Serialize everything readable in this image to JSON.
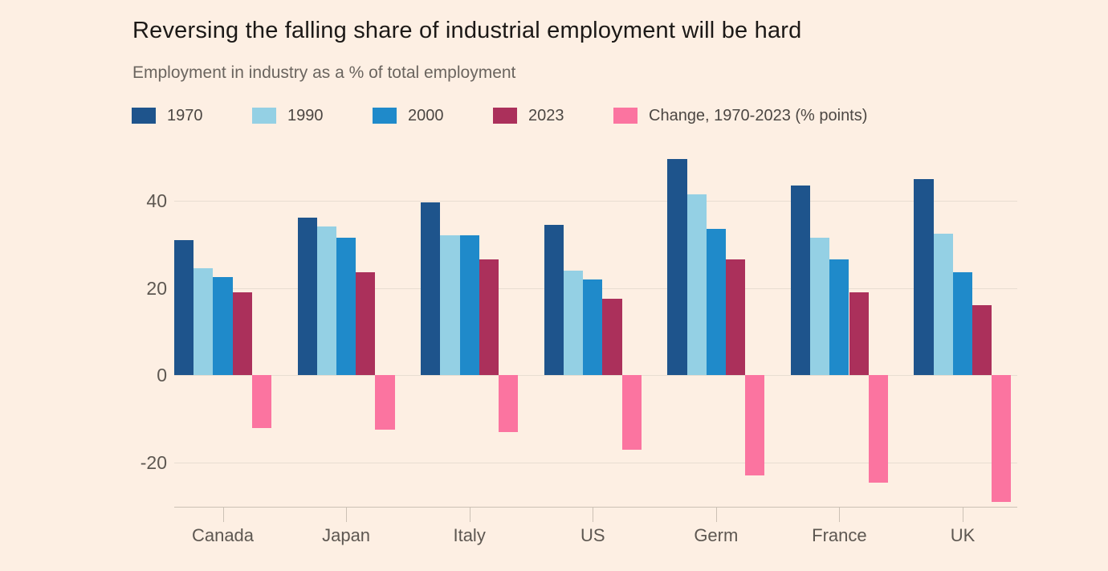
{
  "page": {
    "background": "#fdefe3"
  },
  "colors": {
    "title_text": "#1c1917",
    "subtitle_text": "#6b655f",
    "axis_text": "#5d5751",
    "legend_text": "#4c4743",
    "gridline": "#e8ddd1",
    "axis_line": "#ccc1b5"
  },
  "chart_data": {
    "type": "bar",
    "title": "Reversing the falling share of industrial employment will be hard",
    "subtitle": "Employment in industry as a % of total employment",
    "categories": [
      "Canada",
      "Japan",
      "Italy",
      "US",
      "Germ",
      "France",
      "UK"
    ],
    "series": [
      {
        "key": "1970",
        "name": "1970",
        "color": "#1e548c",
        "values": [
          31,
          36,
          39.5,
          34.5,
          49.5,
          43.5,
          45
        ]
      },
      {
        "key": "1990",
        "name": "1990",
        "color": "#94d0e4",
        "values": [
          24.5,
          34,
          32,
          24,
          41.5,
          31.5,
          32.5
        ]
      },
      {
        "key": "2000",
        "name": "2000",
        "color": "#1f8aca",
        "values": [
          22.5,
          31.5,
          32,
          22,
          33.5,
          26.5,
          23.5
        ]
      },
      {
        "key": "2023",
        "name": "2023",
        "color": "#ab305b",
        "values": [
          19,
          23.5,
          26.5,
          17.5,
          26.5,
          19,
          16
        ]
      },
      {
        "key": "change",
        "name": "Change, 1970-2023 (% points)",
        "color": "#fb74a0",
        "values": [
          -12,
          -12.5,
          -13,
          -17,
          -23,
          -24.5,
          -29
        ]
      }
    ],
    "yticks": [
      40,
      20,
      0,
      -20
    ],
    "ylim": [
      -30.1,
      51.9
    ],
    "grid": true,
    "legend_position": "top"
  }
}
